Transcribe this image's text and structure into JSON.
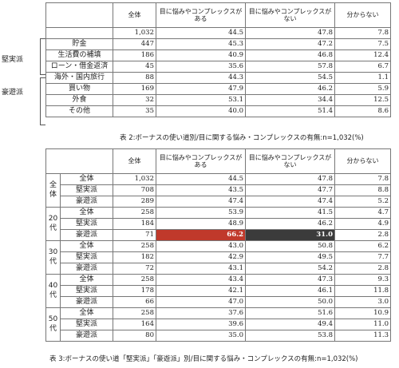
{
  "table1": {
    "headers": [
      "全体",
      "目に悩みやコンプレックスがある",
      "目に悩みやコンプレックスがない",
      "分からない"
    ],
    "rows": [
      {
        "label": "",
        "values": [
          "1,032",
          "44.5",
          "47.8",
          "7.8"
        ]
      },
      {
        "label": "貯金",
        "values": [
          "447",
          "45.3",
          "47.2",
          "7.5"
        ]
      },
      {
        "label": "生活費の補填",
        "values": [
          "186",
          "40.9",
          "46.8",
          "12.4"
        ]
      },
      {
        "label": "ローン・借金返済",
        "values": [
          "45",
          "35.6",
          "57.8",
          "6.7"
        ]
      },
      {
        "label": "海外・国内旅行",
        "values": [
          "88",
          "44.3",
          "54.5",
          "1.1"
        ]
      },
      {
        "label": "買い物",
        "values": [
          "169",
          "47.9",
          "46.2",
          "5.9"
        ]
      },
      {
        "label": "外食",
        "values": [
          "32",
          "53.1",
          "34.4",
          "12.5"
        ]
      },
      {
        "label": "その他",
        "values": [
          "35",
          "40.0",
          "51.4",
          "8.6"
        ]
      }
    ],
    "groups": [
      "堅実派",
      "豪遊派"
    ],
    "caption": "表 2:ボーナスの使い道別/目に関する悩み・コンプレックスの有無:n=1,032(%)"
  },
  "table2": {
    "headers": [
      "全体",
      "目に悩みやコンプレックスがある",
      "目に悩みやコンプレックスがない",
      "分からない"
    ],
    "groups": [
      {
        "name": "全体",
        "rows": [
          {
            "label": "全体",
            "values": [
              "1,032",
              "44.5",
              "47.8",
              "7.8"
            ]
          },
          {
            "label": "堅実派",
            "values": [
              "708",
              "43.5",
              "47.7",
              "8.8"
            ]
          },
          {
            "label": "豪遊派",
            "values": [
              "289",
              "47.4",
              "47.4",
              "5.2"
            ]
          }
        ]
      },
      {
        "name": "20代",
        "rows": [
          {
            "label": "全体",
            "values": [
              "258",
              "53.9",
              "41.5",
              "4.7"
            ]
          },
          {
            "label": "堅実派",
            "values": [
              "184",
              "48.9",
              "46.2",
              "4.9"
            ]
          },
          {
            "label": "豪遊派",
            "values": [
              "71",
              "66.2",
              "31.0",
              "2.8"
            ]
          }
        ]
      },
      {
        "name": "30代",
        "rows": [
          {
            "label": "全体",
            "values": [
              "258",
              "43.0",
              "50.8",
              "6.2"
            ]
          },
          {
            "label": "堅実派",
            "values": [
              "182",
              "42.9",
              "49.5",
              "7.7"
            ]
          },
          {
            "label": "豪遊派",
            "values": [
              "72",
              "43.1",
              "54.2",
              "2.8"
            ]
          }
        ]
      },
      {
        "name": "40代",
        "rows": [
          {
            "label": "全体",
            "values": [
              "258",
              "43.4",
              "47.3",
              "9.3"
            ]
          },
          {
            "label": "堅実派",
            "values": [
              "178",
              "42.1",
              "46.1",
              "11.8"
            ]
          },
          {
            "label": "豪遊派",
            "values": [
              "66",
              "47.0",
              "50.0",
              "3.0"
            ]
          }
        ]
      },
      {
        "name": "50代",
        "rows": [
          {
            "label": "全体",
            "values": [
              "258",
              "37.6",
              "51.6",
              "10.9"
            ]
          },
          {
            "label": "堅実派",
            "values": [
              "164",
              "39.6",
              "49.4",
              "11.0"
            ]
          },
          {
            "label": "豪遊派",
            "values": [
              "80",
              "35.0",
              "53.8",
              "11.3"
            ]
          }
        ]
      }
    ],
    "highlight_colors": {
      "high": "#c0392b",
      "low": "#3b3b3b"
    },
    "caption": "表 3:ボーナスの使い道「堅実派」「豪遊派」別/目に関する悩み・コンプレックスの有無:n=1,032(%)"
  }
}
